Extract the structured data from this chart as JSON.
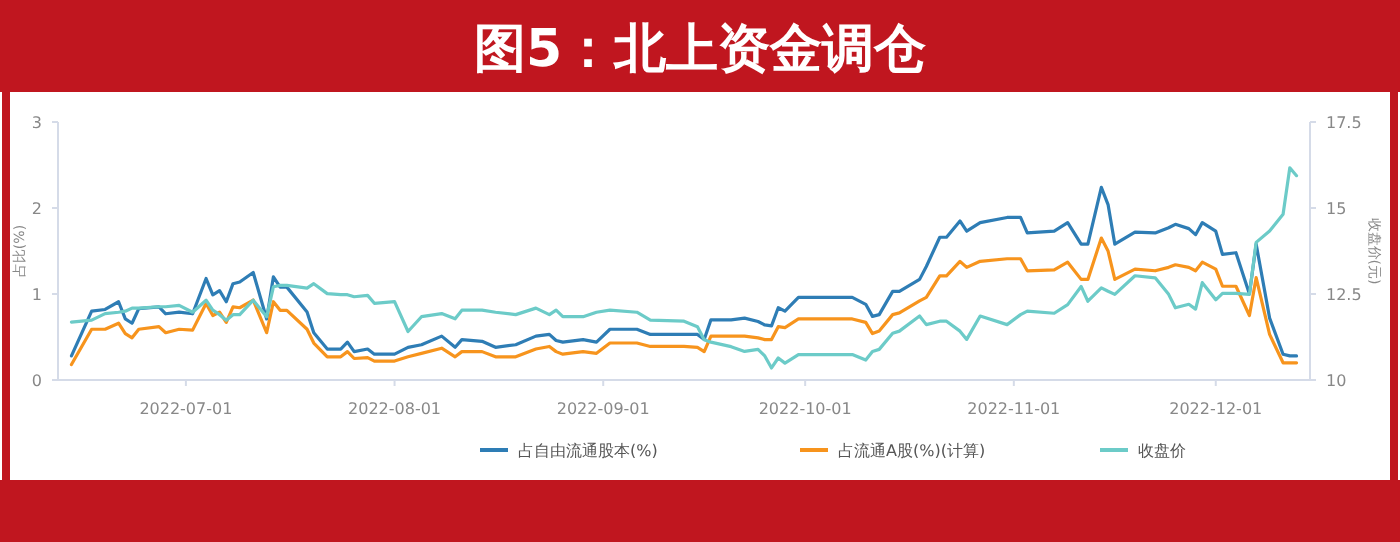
{
  "chart_data": {
    "type": "line",
    "title": "图5：北上资金调仓",
    "ylabel": "占比(%)",
    "y2label": "收盘价(元)",
    "x": [
      "2022-06-14",
      "2022-06-17",
      "2022-06-19",
      "2022-06-21",
      "2022-06-22",
      "2022-06-23",
      "2022-06-24",
      "2022-06-27",
      "2022-06-28",
      "2022-06-30",
      "2022-07-02",
      "2022-07-04",
      "2022-07-05",
      "2022-07-06",
      "2022-07-07",
      "2022-07-08",
      "2022-07-09",
      "2022-07-11",
      "2022-07-13",
      "2022-07-14",
      "2022-07-15",
      "2022-07-16",
      "2022-07-19",
      "2022-07-20",
      "2022-07-22",
      "2022-07-24",
      "2022-07-25",
      "2022-07-26",
      "2022-07-28",
      "2022-07-29",
      "2022-08-01",
      "2022-08-03",
      "2022-08-05",
      "2022-08-08",
      "2022-08-10",
      "2022-08-11",
      "2022-08-14",
      "2022-08-16",
      "2022-08-19",
      "2022-08-22",
      "2022-08-24",
      "2022-08-25",
      "2022-08-26",
      "2022-08-29",
      "2022-08-31",
      "2022-09-02",
      "2022-09-06",
      "2022-09-08",
      "2022-09-13",
      "2022-09-15",
      "2022-09-16",
      "2022-09-17",
      "2022-09-20",
      "2022-09-22",
      "2022-09-24",
      "2022-09-25",
      "2022-09-26",
      "2022-09-27",
      "2022-09-28",
      "2022-09-30",
      "2022-10-08",
      "2022-10-10",
      "2022-10-11",
      "2022-10-12",
      "2022-10-14",
      "2022-10-15",
      "2022-10-18",
      "2022-10-19",
      "2022-10-21",
      "2022-10-22",
      "2022-10-24",
      "2022-10-25",
      "2022-10-27",
      "2022-10-31",
      "2022-11-02",
      "2022-11-03",
      "2022-11-07",
      "2022-11-09",
      "2022-11-11",
      "2022-11-12",
      "2022-11-14",
      "2022-11-15",
      "2022-11-16",
      "2022-11-19",
      "2022-11-22",
      "2022-11-24",
      "2022-11-25",
      "2022-11-27",
      "2022-11-28",
      "2022-11-29",
      "2022-12-01",
      "2022-12-02",
      "2022-12-04",
      "2022-12-06",
      "2022-12-07",
      "2022-12-09",
      "2022-12-11",
      "2022-12-12",
      "2022-12-13"
    ],
    "series": [
      {
        "name": "占自由流通股本(%)",
        "color": "#2e7db5",
        "values": [
          0.28,
          0.8,
          0.82,
          0.91,
          0.71,
          0.66,
          0.83,
          0.85,
          0.77,
          0.79,
          0.77,
          1.18,
          0.99,
          1.04,
          0.91,
          1.12,
          1.14,
          1.25,
          0.71,
          1.2,
          1.08,
          1.08,
          0.79,
          0.55,
          0.36,
          0.36,
          0.44,
          0.33,
          0.36,
          0.3,
          0.3,
          0.38,
          0.41,
          0.51,
          0.38,
          0.47,
          0.45,
          0.38,
          0.41,
          0.51,
          0.53,
          0.46,
          0.44,
          0.47,
          0.44,
          0.59,
          0.59,
          0.53,
          0.53,
          0.53,
          0.47,
          0.7,
          0.7,
          0.72,
          0.68,
          0.64,
          0.63,
          0.84,
          0.8,
          0.96,
          0.96,
          0.88,
          0.74,
          0.76,
          1.03,
          1.03,
          1.17,
          1.32,
          1.66,
          1.66,
          1.85,
          1.73,
          1.83,
          1.89,
          1.89,
          1.71,
          1.73,
          1.83,
          1.58,
          1.58,
          2.24,
          2.04,
          1.58,
          1.72,
          1.71,
          1.77,
          1.81,
          1.76,
          1.69,
          1.83,
          1.73,
          1.46,
          1.48,
          1.0,
          1.58,
          0.72,
          0.3,
          0.28,
          0.28
        ]
      },
      {
        "name": "占流通A股(%)(计算)",
        "color": "#f7941d",
        "values": [
          0.18,
          0.59,
          0.59,
          0.66,
          0.54,
          0.49,
          0.59,
          0.62,
          0.55,
          0.59,
          0.58,
          0.89,
          0.75,
          0.79,
          0.67,
          0.85,
          0.84,
          0.93,
          0.55,
          0.91,
          0.81,
          0.81,
          0.59,
          0.43,
          0.27,
          0.27,
          0.33,
          0.25,
          0.26,
          0.22,
          0.22,
          0.27,
          0.31,
          0.37,
          0.27,
          0.33,
          0.33,
          0.27,
          0.27,
          0.36,
          0.39,
          0.33,
          0.3,
          0.33,
          0.31,
          0.43,
          0.43,
          0.39,
          0.39,
          0.38,
          0.33,
          0.51,
          0.51,
          0.51,
          0.49,
          0.47,
          0.47,
          0.62,
          0.61,
          0.71,
          0.71,
          0.67,
          0.54,
          0.57,
          0.76,
          0.78,
          0.92,
          0.96,
          1.21,
          1.21,
          1.38,
          1.31,
          1.38,
          1.41,
          1.41,
          1.27,
          1.28,
          1.37,
          1.17,
          1.17,
          1.65,
          1.5,
          1.17,
          1.29,
          1.27,
          1.31,
          1.34,
          1.31,
          1.27,
          1.37,
          1.29,
          1.09,
          1.09,
          0.75,
          1.19,
          0.53,
          0.2,
          0.2,
          0.2
        ]
      },
      {
        "name": "收盘价",
        "color": "#6ccbc8",
        "axis": "y2",
        "values": [
          11.68,
          11.74,
          11.93,
          11.97,
          12.0,
          12.09,
          12.09,
          12.13,
          12.13,
          12.17,
          11.97,
          12.32,
          12.03,
          11.9,
          11.74,
          11.9,
          11.9,
          12.32,
          11.84,
          12.71,
          12.75,
          12.75,
          12.67,
          12.8,
          12.51,
          12.48,
          12.48,
          12.42,
          12.46,
          12.23,
          12.28,
          11.41,
          11.84,
          11.93,
          11.78,
          12.03,
          12.03,
          11.97,
          11.9,
          12.09,
          11.9,
          12.03,
          11.84,
          11.84,
          11.97,
          12.03,
          11.97,
          11.74,
          11.71,
          11.55,
          11.17,
          11.1,
          10.97,
          10.83,
          10.89,
          10.7,
          10.35,
          10.64,
          10.49,
          10.74,
          10.74,
          10.58,
          10.83,
          10.89,
          11.36,
          11.42,
          11.86,
          11.61,
          11.71,
          11.71,
          11.42,
          11.18,
          11.86,
          11.61,
          11.9,
          12.0,
          11.94,
          12.19,
          12.72,
          12.29,
          12.68,
          12.58,
          12.49,
          13.03,
          12.97,
          12.49,
          12.1,
          12.2,
          12.06,
          12.83,
          12.33,
          12.52,
          12.52,
          12.49,
          14.0,
          14.33,
          14.82,
          16.17,
          15.94
        ]
      }
    ],
    "xlim": [
      "2022-06-12",
      "2022-12-15"
    ],
    "xticks": [
      "2022-07-01",
      "2022-08-01",
      "2022-09-01",
      "2022-10-01",
      "2022-11-01",
      "2022-12-01"
    ],
    "ylim": [
      0,
      3
    ],
    "yticks": [
      0,
      1,
      2,
      3
    ],
    "y2lim": [
      10,
      17.5
    ],
    "y2ticks": [
      10,
      12.5,
      15,
      17.5
    ],
    "legend": "bottom",
    "marker": "none",
    "line_style": "solid"
  }
}
